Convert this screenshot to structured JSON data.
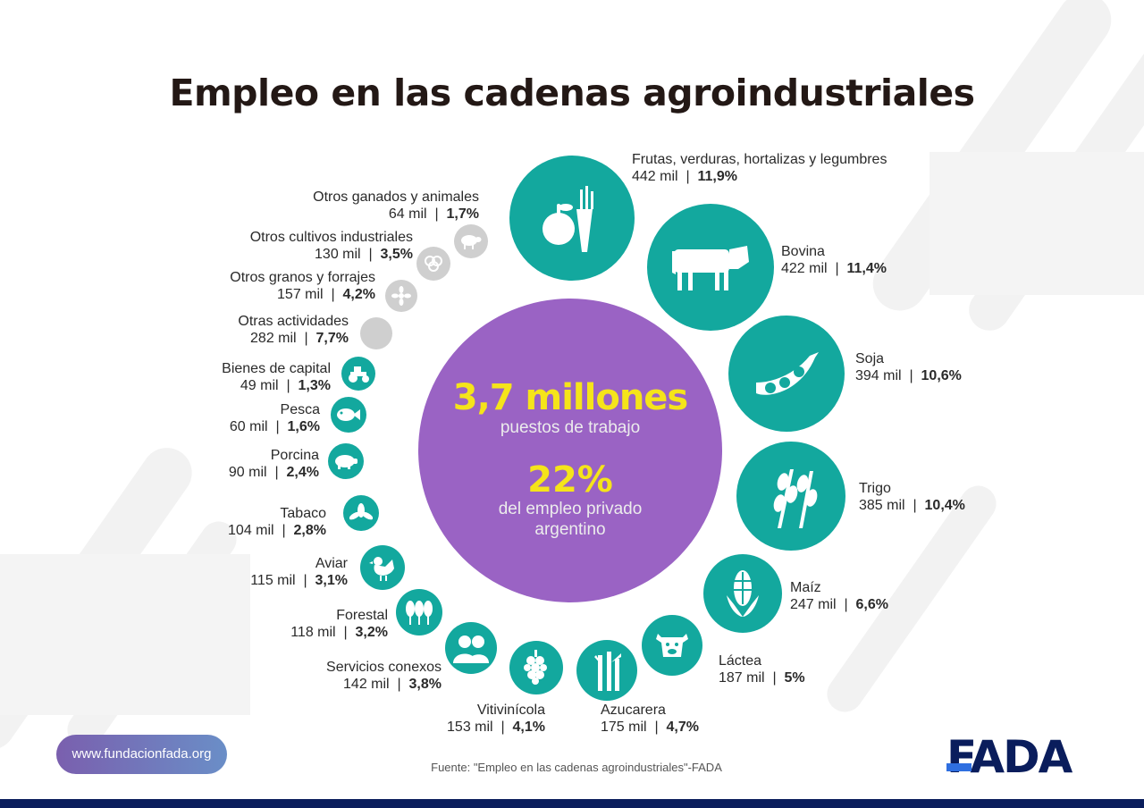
{
  "title": "Empleo en las cadenas agroindustriales",
  "center": {
    "total": "3,7 millones",
    "total_label": "puestos de trabajo",
    "share": "22%",
    "share_label": "del empleo privado argentino"
  },
  "colors": {
    "teal": "#13a89e",
    "gray": "#cfcfcf",
    "purple": "#9a63c4",
    "yellow": "#f5e41a",
    "navy": "#0a1d5c",
    "logo_blue": "#2f6fe0"
  },
  "chart_data": {
    "type": "pie",
    "title": "Empleo en las cadenas agroindustriales",
    "total": {
      "value": 3.7,
      "unit": "millones",
      "label": "puestos de trabajo"
    },
    "share_private_employment": "22%",
    "unit": "mil",
    "categories": [
      {
        "name": "Frutas, verduras, hortalizas y legumbres",
        "value": 442,
        "value_text": "442 mil",
        "percent": "11,9%",
        "icon": "fruit-vegetables-icon"
      },
      {
        "name": "Bovina",
        "value": 422,
        "value_text": "422 mil",
        "percent": "11,4%",
        "icon": "cow-icon"
      },
      {
        "name": "Soja",
        "value": 394,
        "value_text": "394 mil",
        "percent": "10,6%",
        "icon": "soy-pod-icon"
      },
      {
        "name": "Trigo",
        "value": 385,
        "value_text": "385 mil",
        "percent": "10,4%",
        "icon": "wheat-icon"
      },
      {
        "name": "Maíz",
        "value": 247,
        "value_text": "247 mil",
        "percent": "6,6%",
        "icon": "corn-icon"
      },
      {
        "name": "Láctea",
        "value": 187,
        "value_text": "187 mil",
        "percent": "5%",
        "icon": "dairy-cow-icon"
      },
      {
        "name": "Azucarera",
        "value": 175,
        "value_text": "175 mil",
        "percent": "4,7%",
        "icon": "sugarcane-icon"
      },
      {
        "name": "Vitivinícola",
        "value": 153,
        "value_text": "153 mil",
        "percent": "4,1%",
        "icon": "grapes-icon"
      },
      {
        "name": "Servicios conexos",
        "value": 142,
        "value_text": "142 mil",
        "percent": "3,8%",
        "icon": "people-icon"
      },
      {
        "name": "Forestal",
        "value": 118,
        "value_text": "118 mil",
        "percent": "3,2%",
        "icon": "trees-icon"
      },
      {
        "name": "Aviar",
        "value": 115,
        "value_text": "115 mil",
        "percent": "3,1%",
        "icon": "chicken-icon"
      },
      {
        "name": "Tabaco",
        "value": 104,
        "value_text": "104 mil",
        "percent": "2,8%",
        "icon": "tobacco-leaf-icon"
      },
      {
        "name": "Porcina",
        "value": 90,
        "value_text": "90 mil",
        "percent": "2,4%",
        "icon": "pig-icon"
      },
      {
        "name": "Pesca",
        "value": 60,
        "value_text": "60 mil",
        "percent": "1,6%",
        "icon": "fish-icon"
      },
      {
        "name": "Bienes de capital",
        "value": 49,
        "value_text": "49 mil",
        "percent": "1,3%",
        "icon": "tractor-icon"
      },
      {
        "name": "Otras actividades",
        "value": 282,
        "value_text": "282 mil",
        "percent": "7,7%",
        "icon": "",
        "color": "gray"
      },
      {
        "name": "Otros granos y forrajes",
        "value": 157,
        "value_text": "157 mil",
        "percent": "4,2%",
        "icon": "grain-flower-icon",
        "color": "gray"
      },
      {
        "name": "Otros cultivos industriales",
        "value": 130,
        "value_text": "130 mil",
        "percent": "3,5%",
        "icon": "cotton-icon",
        "color": "gray"
      },
      {
        "name": "Otros ganados y animales",
        "value": 64,
        "value_text": "64 mil",
        "percent": "1,7%",
        "icon": "sheep-icon",
        "color": "gray"
      }
    ]
  },
  "footer": {
    "url": "www.fundacionfada.org",
    "source": "Fuente: \"Empleo en las cadenas agroindustriales\"-FADA",
    "logo": "FADA"
  }
}
